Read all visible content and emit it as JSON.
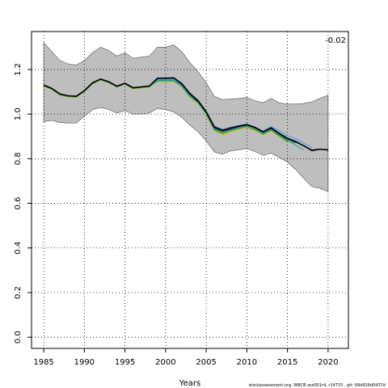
{
  "chart_data": {
    "type": "line",
    "xlabel": "Years",
    "ylabel": "",
    "xlim": [
      1983.5,
      2022.5
    ],
    "ylim": [
      -0.05,
      1.37
    ],
    "x_ticks": [
      1985,
      1990,
      1995,
      2000,
      2005,
      2010,
      2015,
      2020
    ],
    "y_ticks": [
      0.0,
      0.2,
      0.4,
      0.6,
      0.8,
      1.0,
      1.2
    ],
    "grid": true,
    "corner_annotation": "-0.02",
    "footer": "stockassessment.org, WBCB  ass001r4, r14715 , git: 69d926d0437d",
    "band": {
      "color": "#bebebe",
      "x": [
        1985,
        1986,
        1987,
        1988,
        1989,
        1990,
        1991,
        1992,
        1993,
        1994,
        1995,
        1996,
        1997,
        1998,
        1999,
        2000,
        2001,
        2002,
        2003,
        2004,
        2005,
        2006,
        2007,
        2008,
        2009,
        2010,
        2011,
        2012,
        2013,
        2014,
        2015,
        2016,
        2017,
        2018,
        2019,
        2020
      ],
      "upper": [
        1.32,
        1.28,
        1.24,
        1.225,
        1.22,
        1.24,
        1.275,
        1.3,
        1.285,
        1.26,
        1.275,
        1.25,
        1.255,
        1.26,
        1.3,
        1.3,
        1.31,
        1.28,
        1.23,
        1.19,
        1.14,
        1.08,
        1.065,
        1.068,
        1.07,
        1.075,
        1.06,
        1.05,
        1.07,
        1.05,
        1.045,
        1.045,
        1.048,
        1.055,
        1.07,
        1.085
      ],
      "lower": [
        0.965,
        0.972,
        0.962,
        0.96,
        0.96,
        0.99,
        1.02,
        1.03,
        1.02,
        1.005,
        1.015,
        1.0,
        1.0,
        1.005,
        1.025,
        1.02,
        1.01,
        0.985,
        0.95,
        0.92,
        0.88,
        0.83,
        0.82,
        0.835,
        0.84,
        0.845,
        0.832,
        0.815,
        0.825,
        0.805,
        0.785,
        0.752,
        0.712,
        0.675,
        0.668,
        0.652
      ]
    },
    "series": [
      {
        "color": "#000000",
        "width": 1.6,
        "x": [
          1985,
          1986,
          1987,
          1988,
          1989,
          1990,
          1991,
          1992,
          1993,
          1994,
          1995,
          1996,
          1997,
          1998,
          1999,
          2000,
          2001,
          2002,
          2003,
          2004,
          2005,
          2006,
          2007,
          2008,
          2009,
          2010,
          2011,
          2012,
          2013,
          2014,
          2015,
          2016,
          2017,
          2018,
          2019,
          2020
        ],
        "y": [
          1.13,
          1.115,
          1.09,
          1.082,
          1.08,
          1.105,
          1.14,
          1.157,
          1.145,
          1.125,
          1.138,
          1.118,
          1.122,
          1.126,
          1.16,
          1.16,
          1.162,
          1.135,
          1.09,
          1.058,
          1.01,
          0.94,
          0.925,
          0.935,
          0.945,
          0.952,
          0.94,
          0.92,
          0.937,
          0.912,
          0.89,
          0.876,
          0.858,
          0.838,
          0.843,
          0.839
        ]
      },
      {
        "color": "#2d2d8e",
        "width": 1.1,
        "x": [
          1985,
          1986,
          1987,
          1988,
          1989,
          1990,
          1991,
          1992,
          1993,
          1994,
          1995,
          1996,
          1997,
          1998,
          1999,
          2000,
          2001,
          2002,
          2003,
          2004,
          2005,
          2006,
          2007,
          2008,
          2009,
          2010,
          2011,
          2012,
          2013,
          2014,
          2015,
          2016,
          2017,
          2018,
          2019
        ],
        "y": [
          1.13,
          1.115,
          1.09,
          1.082,
          1.08,
          1.105,
          1.14,
          1.157,
          1.145,
          1.125,
          1.138,
          1.118,
          1.122,
          1.126,
          1.162,
          1.162,
          1.163,
          1.138,
          1.094,
          1.062,
          1.012,
          0.945,
          0.93,
          0.94,
          0.948,
          0.954,
          0.942,
          0.922,
          0.94,
          0.915,
          0.893,
          0.879,
          0.858,
          0.835,
          0.842
        ]
      },
      {
        "color": "#4f9fe0",
        "width": 1.1,
        "x": [
          1985,
          1986,
          1987,
          1988,
          1989,
          1990,
          1991,
          1992,
          1993,
          1994,
          1995,
          1996,
          1997,
          1998,
          1999,
          2000,
          2001,
          2002,
          2003,
          2004,
          2005,
          2006,
          2007,
          2008,
          2009,
          2010,
          2011,
          2012,
          2013,
          2014,
          2015,
          2016,
          2017,
          2018
        ],
        "y": [
          1.13,
          1.115,
          1.09,
          1.082,
          1.08,
          1.105,
          1.14,
          1.157,
          1.145,
          1.125,
          1.138,
          1.118,
          1.122,
          1.126,
          1.155,
          1.155,
          1.156,
          1.13,
          1.085,
          1.06,
          1.01,
          0.943,
          0.93,
          0.94,
          0.948,
          0.955,
          0.94,
          0.925,
          0.945,
          0.925,
          0.903,
          0.89,
          0.87,
          0.85
        ]
      },
      {
        "color": "#20a8a0",
        "width": 1.1,
        "x": [
          1985,
          1986,
          1987,
          1988,
          1989,
          1990,
          1991,
          1992,
          1993,
          1994,
          1995,
          1996,
          1997,
          1998,
          1999,
          2000,
          2001,
          2002,
          2003,
          2004,
          2005,
          2006,
          2007,
          2008,
          2009,
          2010,
          2011,
          2012,
          2013,
          2014,
          2015,
          2016,
          2017
        ],
        "y": [
          1.128,
          1.113,
          1.088,
          1.08,
          1.078,
          1.103,
          1.138,
          1.155,
          1.143,
          1.123,
          1.136,
          1.116,
          1.12,
          1.124,
          1.152,
          1.152,
          1.153,
          1.128,
          1.083,
          1.055,
          1.005,
          0.935,
          0.92,
          0.93,
          0.94,
          0.948,
          0.935,
          0.915,
          0.932,
          0.908,
          0.885,
          0.86,
          0.84
        ]
      },
      {
        "color": "#1f8a3c",
        "width": 1.1,
        "x": [
          1985,
          1986,
          1987,
          1988,
          1989,
          1990,
          1991,
          1992,
          1993,
          1994,
          1995,
          1996,
          1997,
          1998,
          1999,
          2000,
          2001,
          2002,
          2003,
          2004,
          2005,
          2006,
          2007,
          2008,
          2009,
          2010,
          2011,
          2012,
          2013,
          2014,
          2015,
          2016
        ],
        "y": [
          1.128,
          1.113,
          1.088,
          1.08,
          1.078,
          1.103,
          1.138,
          1.155,
          1.143,
          1.123,
          1.136,
          1.116,
          1.12,
          1.124,
          1.15,
          1.15,
          1.151,
          1.126,
          1.08,
          1.052,
          1.002,
          0.932,
          0.917,
          0.928,
          0.938,
          0.946,
          0.932,
          0.912,
          0.93,
          0.905,
          0.88,
          0.87
        ]
      },
      {
        "color": "#7ab020",
        "width": 1.1,
        "x": [
          1985,
          1986,
          1987,
          1988,
          1989,
          1990,
          1991,
          1992,
          1993,
          1994,
          1995,
          1996,
          1997,
          1998,
          1999,
          2000,
          2001,
          2002,
          2003,
          2004,
          2005,
          2006,
          2007,
          2008,
          2009,
          2010,
          2011,
          2012,
          2013,
          2014,
          2015
        ],
        "y": [
          1.126,
          1.111,
          1.086,
          1.078,
          1.076,
          1.101,
          1.136,
          1.153,
          1.141,
          1.121,
          1.134,
          1.114,
          1.118,
          1.122,
          1.148,
          1.148,
          1.149,
          1.124,
          1.078,
          1.05,
          1.0,
          0.928,
          0.912,
          0.925,
          0.935,
          0.943,
          0.93,
          0.91,
          0.927,
          0.9,
          0.876
        ]
      },
      {
        "color": "#c8b820",
        "width": 1.1,
        "x": [
          1985,
          1986,
          1987,
          1988,
          1989,
          1990,
          1991,
          1992,
          1993,
          1994,
          1995,
          1996,
          1997,
          1998,
          1999,
          2000,
          2001,
          2002,
          2003,
          2004,
          2005,
          2006,
          2007,
          2008,
          2009,
          2010,
          2011,
          2012,
          2013,
          2014
        ],
        "y": [
          1.125,
          1.11,
          1.085,
          1.077,
          1.075,
          1.1,
          1.135,
          1.152,
          1.14,
          1.12,
          1.133,
          1.113,
          1.117,
          1.121,
          1.146,
          1.146,
          1.147,
          1.122,
          1.076,
          1.048,
          0.998,
          0.925,
          0.908,
          0.922,
          0.932,
          0.94,
          0.927,
          0.907,
          0.925,
          0.898
        ]
      }
    ]
  }
}
